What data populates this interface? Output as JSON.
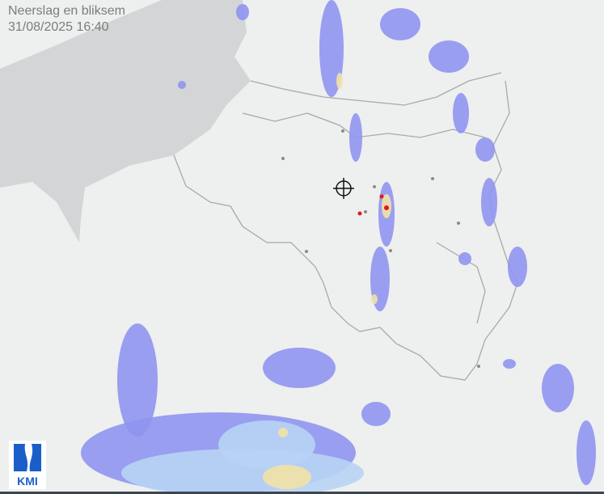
{
  "header": {
    "title": "Neerslag en bliksem",
    "timestamp": "31/08/2025  16:40"
  },
  "logo": {
    "text": "KMI"
  },
  "colors": {
    "sea": "#d3d5d7",
    "land": "#eeefef",
    "border": "#a9a9a9",
    "rain_light": "#b7d3f4",
    "rain_medium": "#8f95f0",
    "rain_heavy": "#f1e2a6",
    "lightning": "#e8141b"
  },
  "map": {
    "marker_icon": "crosshair-icon"
  }
}
